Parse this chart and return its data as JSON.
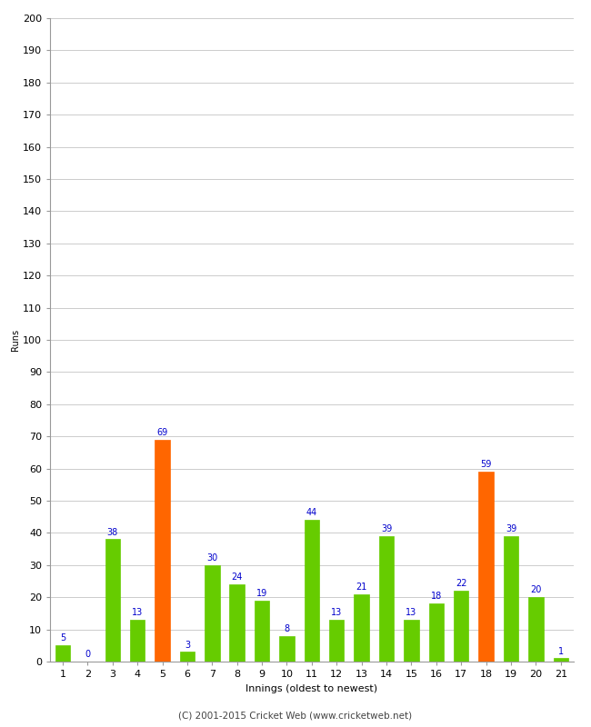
{
  "xlabel": "Innings (oldest to newest)",
  "ylabel": "Runs",
  "categories": [
    1,
    2,
    3,
    4,
    5,
    6,
    7,
    8,
    9,
    10,
    11,
    12,
    13,
    14,
    15,
    16,
    17,
    18,
    19,
    20,
    21
  ],
  "values": [
    5,
    0,
    38,
    13,
    69,
    3,
    30,
    24,
    19,
    8,
    44,
    13,
    21,
    39,
    13,
    18,
    22,
    59,
    39,
    20,
    1
  ],
  "bar_colors": [
    "#66cc00",
    "#66cc00",
    "#66cc00",
    "#66cc00",
    "#ff6600",
    "#66cc00",
    "#66cc00",
    "#66cc00",
    "#66cc00",
    "#66cc00",
    "#66cc00",
    "#66cc00",
    "#66cc00",
    "#66cc00",
    "#66cc00",
    "#66cc00",
    "#66cc00",
    "#ff6600",
    "#66cc00",
    "#66cc00",
    "#66cc00"
  ],
  "ylim": [
    0,
    200
  ],
  "yticks": [
    0,
    10,
    20,
    30,
    40,
    50,
    60,
    70,
    80,
    90,
    100,
    110,
    120,
    130,
    140,
    150,
    160,
    170,
    180,
    190,
    200
  ],
  "label_color": "#0000cc",
  "label_fontsize": 7,
  "axis_tick_fontsize": 8,
  "xlabel_fontsize": 8,
  "ylabel_fontsize": 7,
  "background_color": "#ffffff",
  "grid_color": "#cccccc",
  "footer": "(C) 2001-2015 Cricket Web (www.cricketweb.net)",
  "footer_fontsize": 7.5
}
